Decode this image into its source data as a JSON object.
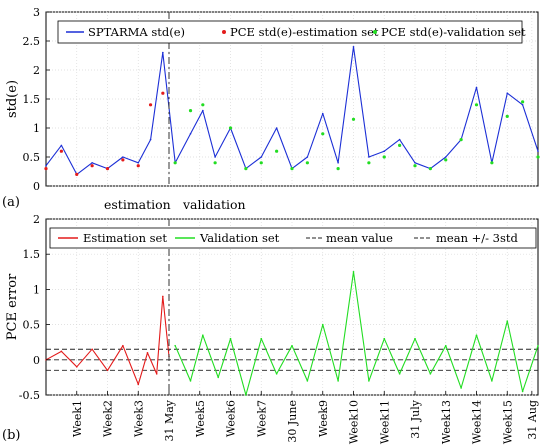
{
  "chart_data": [
    {
      "panel_label": "(a)",
      "type": "line",
      "ylabel": "std(e)",
      "ylim": [
        0,
        3
      ],
      "yticks": [
        0,
        0.5,
        1,
        1.5,
        2,
        2.5,
        3
      ],
      "ytick_labels": [
        "0",
        "0.5",
        "1",
        "1.5",
        "2",
        "2.5",
        "3"
      ],
      "xlim": [
        0,
        16
      ],
      "divider_x": 4,
      "annotations": [
        "estimation",
        "validation"
      ],
      "legend": [
        "SPTARMA std(e)",
        "PCE std(e)-estimation set",
        "PCE std(e)-validation set"
      ],
      "legend_position": "top",
      "series": [
        {
          "name": "SPTARMA std(e)",
          "color": "#1c2fd6",
          "style": "line",
          "x": [
            0,
            0.5,
            1,
            1.5,
            2,
            2.5,
            3,
            3.4,
            3.8,
            4.2,
            4.7,
            5.1,
            5.5,
            6,
            6.5,
            7,
            7.5,
            8,
            8.5,
            9,
            9.5,
            10,
            10.5,
            11,
            11.5,
            12,
            12.5,
            13,
            13.5,
            14,
            14.5,
            15,
            15.5,
            16
          ],
          "values": [
            0.35,
            0.7,
            0.2,
            0.4,
            0.3,
            0.5,
            0.4,
            0.8,
            2.3,
            0.4,
            0.9,
            1.3,
            0.5,
            1.0,
            0.3,
            0.5,
            1.0,
            0.3,
            0.5,
            1.25,
            0.4,
            2.4,
            0.5,
            0.6,
            0.8,
            0.4,
            0.3,
            0.5,
            0.8,
            1.7,
            0.4,
            1.6,
            1.4,
            0.6
          ]
        },
        {
          "name": "PCE std(e)-estimation set",
          "color": "#e31b1b",
          "style": "markers",
          "x": [
            0,
            0.5,
            1,
            1.5,
            2,
            2.5,
            3,
            3.4,
            3.8
          ],
          "values": [
            0.3,
            0.6,
            0.2,
            0.35,
            0.3,
            0.45,
            0.35,
            1.4,
            1.6
          ]
        },
        {
          "name": "PCE std(e)-validation set",
          "color": "#22dd22",
          "style": "markers",
          "x": [
            4.2,
            4.7,
            5.1,
            5.5,
            6,
            6.5,
            7,
            7.5,
            8,
            8.5,
            9,
            9.5,
            10,
            10.5,
            11,
            11.5,
            12,
            12.5,
            13,
            13.5,
            14,
            14.5,
            15,
            15.5,
            16
          ],
          "values": [
            0.4,
            1.3,
            1.4,
            0.4,
            1.0,
            0.3,
            0.4,
            0.6,
            0.3,
            0.4,
            0.9,
            0.3,
            1.15,
            0.4,
            0.5,
            0.7,
            0.35,
            0.3,
            0.45,
            0.8,
            1.4,
            0.4,
            1.2,
            1.45,
            0.5
          ]
        }
      ]
    },
    {
      "panel_label": "(b)",
      "type": "line",
      "ylabel": "PCE error",
      "ylim": [
        -0.5,
        2
      ],
      "yticks": [
        -0.5,
        0,
        0.5,
        1,
        1.5,
        2
      ],
      "ytick_labels": [
        "-0.5",
        "0",
        "0.5",
        "1",
        "1.5",
        "2"
      ],
      "xlim": [
        0,
        16
      ],
      "divider_x": 4,
      "xtick_positions": [
        1,
        2,
        3,
        4,
        5,
        6,
        7,
        8,
        9,
        10,
        11,
        12,
        13,
        14,
        15,
        15.8
      ],
      "xtick_labels": [
        "Week1",
        "Week2",
        "Week3",
        "31 May",
        "Week5",
        "Week6",
        "Week7",
        "30 June",
        "Week9",
        "Week10",
        "Week11",
        "31 July",
        "Week13",
        "Week14",
        "Week15",
        "31 Aug"
      ],
      "legend": [
        "Estimation set",
        "Validation set",
        "mean value",
        "mean +/- 3std"
      ],
      "legend_position": "top",
      "mean_value": 0,
      "band": [
        -0.15,
        0.15
      ],
      "series": [
        {
          "name": "Estimation set",
          "color": "#e31b1b",
          "style": "line",
          "x": [
            0,
            0.5,
            1,
            1.5,
            2,
            2.5,
            3,
            3.3,
            3.6,
            3.8,
            4
          ],
          "values": [
            0.0,
            0.12,
            -0.1,
            0.15,
            -0.15,
            0.2,
            -0.35,
            0.1,
            -0.2,
            0.9,
            0.05
          ]
        },
        {
          "name": "Validation set",
          "color": "#22dd22",
          "style": "line",
          "x": [
            4.2,
            4.7,
            5.1,
            5.6,
            6,
            6.5,
            7,
            7.5,
            8,
            8.5,
            9,
            9.5,
            10,
            10.5,
            11,
            11.5,
            12,
            12.5,
            13,
            13.5,
            14,
            14.5,
            15,
            15.5,
            16
          ],
          "values": [
            0.2,
            -0.3,
            0.35,
            -0.25,
            0.3,
            -0.5,
            0.3,
            -0.2,
            0.2,
            -0.3,
            0.5,
            -0.3,
            1.25,
            -0.3,
            0.3,
            -0.2,
            0.3,
            -0.2,
            0.2,
            -0.4,
            0.35,
            -0.3,
            0.55,
            -0.45,
            0.2
          ]
        }
      ]
    }
  ],
  "ui": {
    "colors": {
      "sptarma": "#1c2fd6",
      "estimation": "#e31b1b",
      "validation": "#22dd22",
      "mean_line": "#222222",
      "divider": "#333333"
    }
  }
}
